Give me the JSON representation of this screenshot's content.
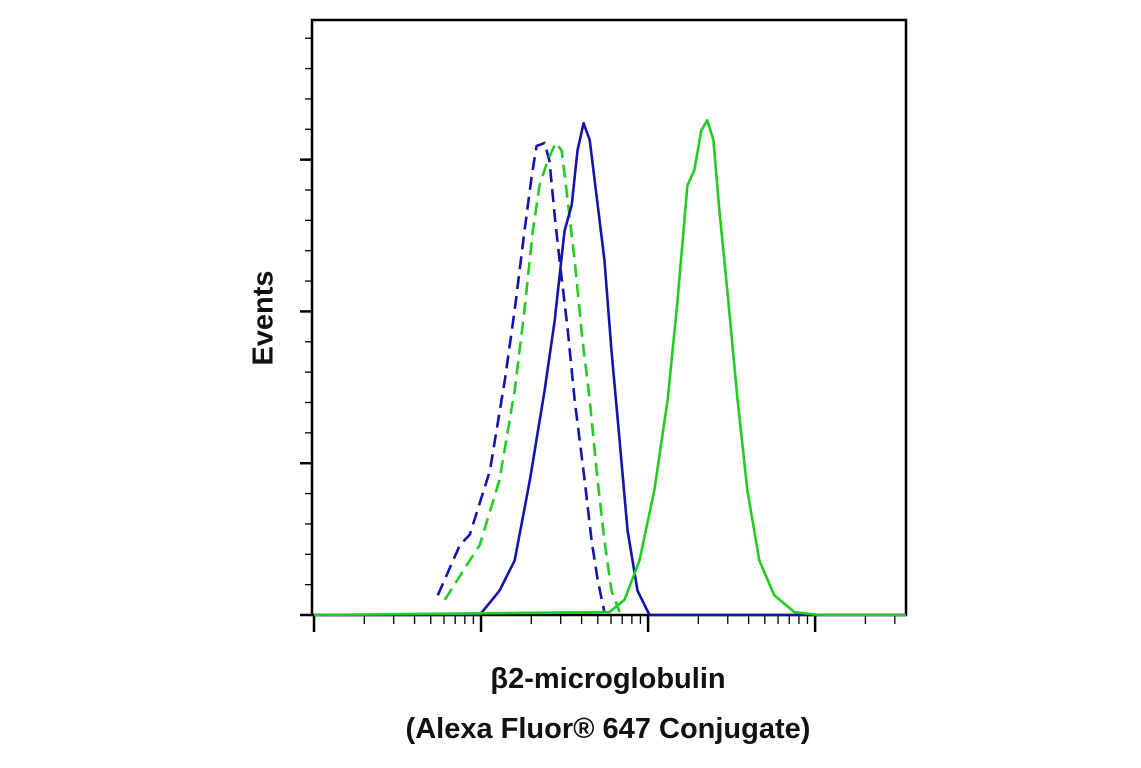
{
  "chart_data": {
    "type": "line",
    "ylabel": "Events",
    "xlabel": [
      "β2-microglobulin",
      "(Alexa Fluor® 647 Conjugate)"
    ],
    "xlog": true,
    "xlim": [
      1,
      3500
    ],
    "xticks": [
      1,
      2,
      3,
      4,
      5,
      6,
      7,
      8,
      9,
      10,
      20,
      30,
      40,
      50,
      60,
      70,
      80,
      90,
      100,
      200,
      300,
      400,
      500,
      600,
      700,
      800,
      900,
      1000,
      2000,
      3000
    ],
    "ylim": [
      0,
      392
    ],
    "yticks": [
      0,
      20,
      40,
      60,
      80,
      100,
      120,
      140,
      160,
      180,
      200,
      220,
      240,
      260,
      280,
      300,
      320,
      340,
      360,
      380
    ],
    "series": [
      {
        "color": "#1414aa",
        "dash": true,
        "x": [
          5.51,
          7.46,
          8.56,
          11.3,
          13.9,
          15.9,
          18.2,
          20.1,
          21.5,
          24.0,
          25.7,
          27.6,
          29.5,
          33.0,
          36.3,
          41.7,
          45.9,
          49.9,
          54.8
        ],
        "values": [
          13,
          46,
          53,
          95,
          155,
          201,
          253,
          289,
          309,
          311,
          299,
          263,
          234,
          188,
          142,
          89,
          49,
          23,
          2
        ]
      },
      {
        "color": "#22cc22",
        "dash": true,
        "x": [
          6.07,
          8.56,
          9.82,
          12.9,
          15.9,
          18.2,
          20.4,
          22.4,
          25.0,
          28.0,
          30.4,
          33.0,
          36.3,
          40.5,
          44.7,
          49.2,
          54.8,
          60.4,
          67.5
        ],
        "values": [
          10,
          36,
          46,
          89,
          148,
          201,
          253,
          283,
          299,
          311,
          306,
          273,
          234,
          181,
          142,
          95,
          49,
          16,
          2
        ]
      },
      {
        "color": "#1414aa",
        "dash": false,
        "x": [
          1,
          9.82,
          12.9,
          15.9,
          19.6,
          24.0,
          27.6,
          31.6,
          34.9,
          37.8,
          41.1,
          44.7,
          49.2,
          54.8,
          60.4,
          67.5,
          75.3,
          86.4,
          102,
          3500
        ],
        "values": [
          0,
          0,
          16,
          36,
          89,
          148,
          194,
          253,
          270,
          306,
          324,
          313,
          276,
          234,
          174,
          115,
          56,
          16,
          0,
          0
        ]
      },
      {
        "color": "#22cc22",
        "dash": false,
        "x": [
          1,
          58.8,
          72.3,
          88.9,
          109,
          131,
          150,
          172,
          189,
          208,
          226,
          246,
          267,
          298,
          343,
          393,
          463,
          570,
          750,
          1059,
          3500
        ],
        "values": [
          0,
          2,
          10,
          36,
          82,
          142,
          207,
          283,
          293,
          319,
          326,
          313,
          267,
          214,
          142,
          82,
          36,
          13,
          2,
          0,
          0
        ]
      }
    ]
  }
}
